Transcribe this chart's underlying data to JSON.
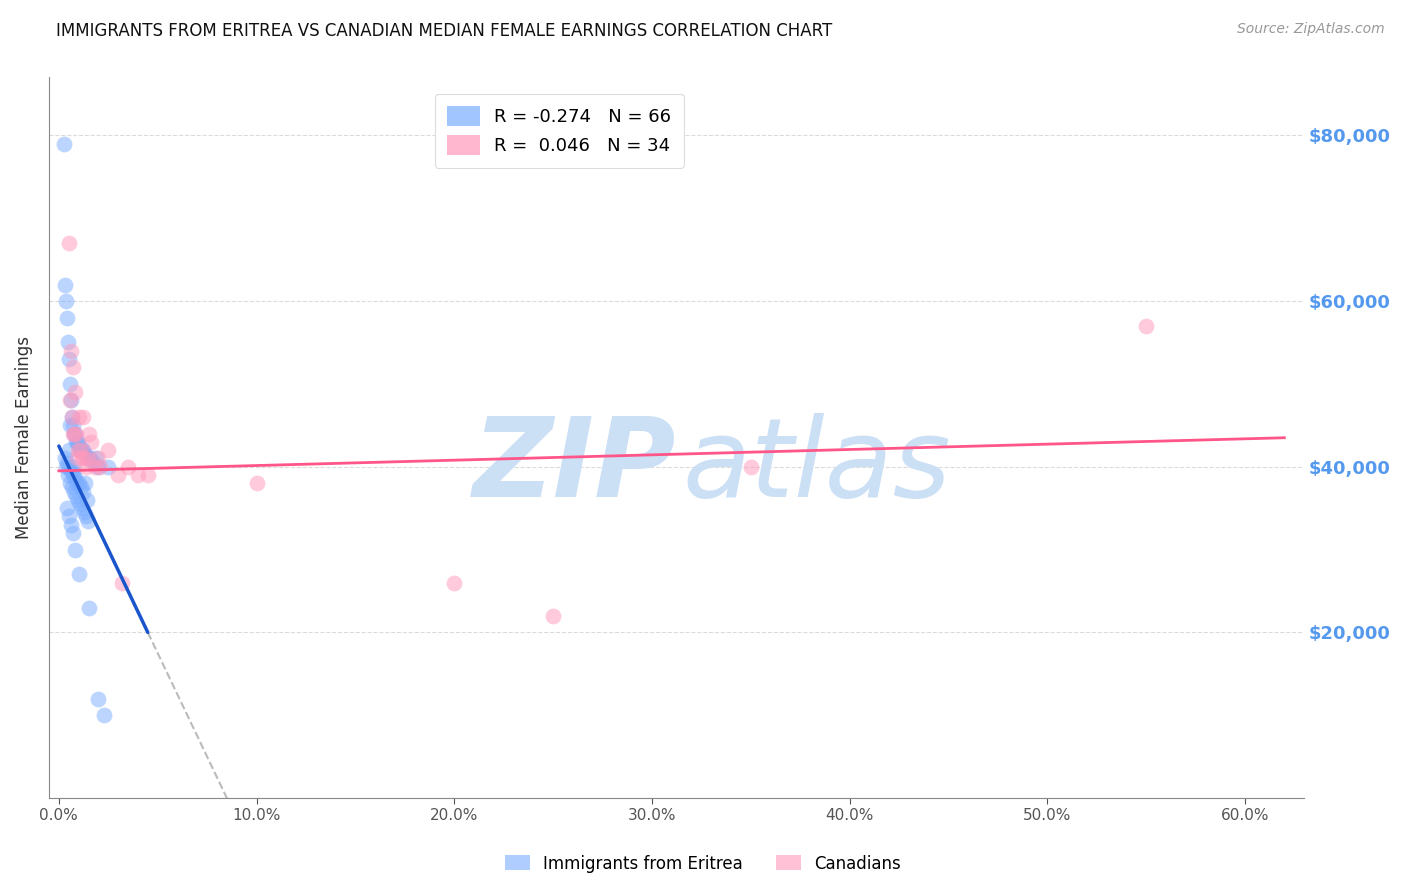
{
  "title": "IMMIGRANTS FROM ERITREA VS CANADIAN MEDIAN FEMALE EARNINGS CORRELATION CHART",
  "source": "Source: ZipAtlas.com",
  "ylabel": "Median Female Earnings",
  "ylim": [
    0,
    87000
  ],
  "xlim": [
    -0.5,
    63
  ],
  "blue_R": -0.274,
  "blue_N": 66,
  "pink_R": 0.046,
  "pink_N": 34,
  "blue_color": "#7aadff",
  "pink_color": "#ff99bb",
  "blue_line_color": "#1a55cc",
  "pink_line_color": "#ff5588",
  "dash_color": "#bbbbbb",
  "grid_color": "#cccccc",
  "watermark_color": "#cce0f5",
  "title_color": "#111111",
  "axis_label_color": "#333333",
  "right_ytick_color": "#5599ee",
  "source_color": "#999999",
  "ylabel_ticks": [
    0,
    20000,
    40000,
    60000,
    80000
  ],
  "x_tick_vals": [
    0,
    10,
    20,
    30,
    40,
    50,
    60
  ],
  "x_tick_labels": [
    "0.0%",
    "10.0%",
    "20.0%",
    "30.0%",
    "40.0%",
    "50.0%",
    "60.0%"
  ],
  "blue_line_x0": 0.0,
  "blue_line_x1": 4.5,
  "blue_line_y0": 42500,
  "blue_line_y1": 20000,
  "blue_dash_x0": 4.5,
  "blue_dash_x1": 45.0,
  "pink_line_x0": 0.0,
  "pink_line_x1": 62.0,
  "pink_line_y0": 39500,
  "pink_line_y1": 43500,
  "blue_scatter_x": [
    0.25,
    0.3,
    0.35,
    0.4,
    0.45,
    0.5,
    0.55,
    0.6,
    0.65,
    0.7,
    0.75,
    0.8,
    0.85,
    0.9,
    0.95,
    1.0,
    1.05,
    1.1,
    1.15,
    1.2,
    1.3,
    1.4,
    1.5,
    1.6,
    1.8,
    2.0,
    2.5,
    0.3,
    0.4,
    0.5,
    0.6,
    0.65,
    0.7,
    0.75,
    0.8,
    0.9,
    1.0,
    1.1,
    1.2,
    1.4,
    0.35,
    0.45,
    0.55,
    0.65,
    0.75,
    0.85,
    0.95,
    1.05,
    1.15,
    1.25,
    1.35,
    1.45,
    0.4,
    0.5,
    0.6,
    0.7,
    0.8,
    1.0,
    1.5,
    2.0,
    0.5,
    0.7,
    1.3,
    0.55,
    1.9,
    2.3
  ],
  "blue_scatter_y": [
    79000,
    62000,
    60000,
    58000,
    55000,
    53000,
    50000,
    48000,
    46000,
    45000,
    44000,
    44000,
    43000,
    43000,
    43000,
    42500,
    42000,
    42000,
    42000,
    42000,
    41500,
    41000,
    41000,
    41000,
    40500,
    40000,
    40000,
    41000,
    40500,
    40000,
    39500,
    39500,
    39000,
    39000,
    38500,
    38000,
    38000,
    37500,
    37000,
    36000,
    40000,
    39000,
    38000,
    37500,
    37000,
    36500,
    36000,
    35500,
    35000,
    34500,
    34000,
    33500,
    35000,
    34000,
    33000,
    32000,
    30000,
    27000,
    23000,
    12000,
    42000,
    40000,
    38000,
    45000,
    41000,
    10000
  ],
  "pink_scatter_x": [
    0.5,
    0.6,
    0.7,
    0.8,
    1.0,
    1.2,
    1.5,
    2.0,
    3.5,
    4.0,
    0.55,
    0.75,
    0.95,
    1.15,
    1.35,
    1.65,
    2.5,
    0.65,
    0.85,
    1.05,
    1.45,
    2.1,
    3.2,
    0.7,
    0.9,
    1.25,
    1.85,
    3.0,
    4.5,
    10.0,
    20.0,
    55.0,
    35.0,
    25.0
  ],
  "pink_scatter_y": [
    67000,
    54000,
    52000,
    49000,
    46000,
    46000,
    44000,
    41000,
    40000,
    39000,
    48000,
    44000,
    42000,
    41000,
    40000,
    43000,
    42000,
    46000,
    44000,
    42000,
    41000,
    40000,
    26000,
    44000,
    41000,
    41000,
    40000,
    39000,
    39000,
    38000,
    26000,
    57000,
    40000,
    22000
  ]
}
